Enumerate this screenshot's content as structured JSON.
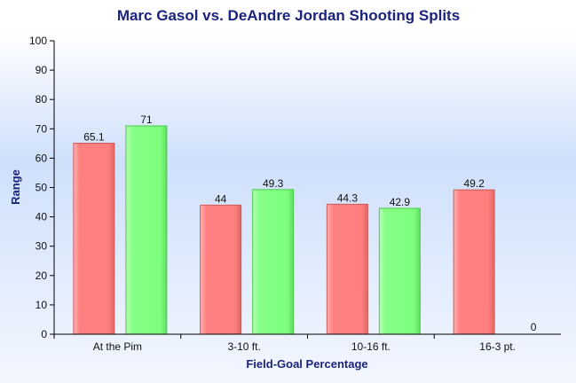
{
  "chart_data": {
    "type": "bar",
    "title": "Marc Gasol vs. DeAndre Jordan Shooting Splits",
    "xlabel": "Field-Goal Percentage",
    "ylabel": "Range",
    "ylim": [
      0,
      100
    ],
    "yticks": [
      0,
      10,
      20,
      30,
      40,
      50,
      60,
      70,
      80,
      90,
      100
    ],
    "categories": [
      "At the Pim",
      "3-10 ft.",
      "10-16 ft.",
      "16-3 pt."
    ],
    "series": [
      {
        "values": [
          65.1,
          44,
          44.3,
          49.2
        ],
        "color": "#ff7f7f"
      },
      {
        "values": [
          71,
          49.3,
          42.9,
          0
        ],
        "color": "#80ff80"
      }
    ],
    "data_labels": [
      [
        "65.1",
        "44",
        "44.3",
        "49.2"
      ],
      [
        "71",
        "49.3",
        "42.9",
        "0"
      ]
    ],
    "grid": false,
    "legend": "none"
  }
}
